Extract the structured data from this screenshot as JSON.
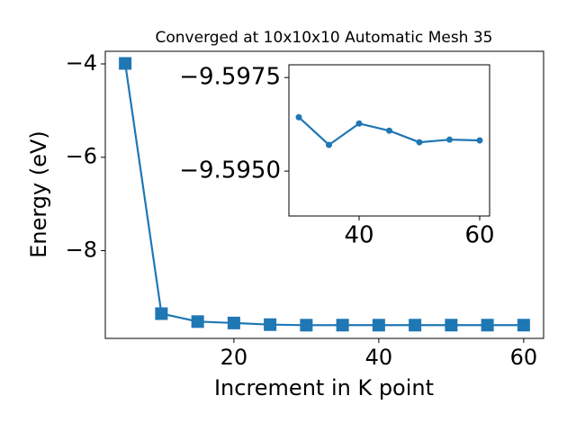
{
  "chart_data": [
    {
      "type": "line",
      "title": "Converged at 10x10x10 Automatic Mesh 35",
      "x_label": "Increment in K point",
      "y_label": "Energy (eV)",
      "x": [
        5,
        10,
        15,
        20,
        25,
        30,
        35,
        40,
        45,
        50,
        55,
        60
      ],
      "series": [
        {
          "color": "#1f77b4",
          "marker": "square",
          "values": [
            -3.99,
            -9.35,
            -9.52,
            -9.55,
            -9.585,
            -9.5964,
            -9.5957,
            -9.5963,
            -9.5961,
            -9.5958,
            -9.5958,
            -9.5958
          ]
        }
      ],
      "xlim": [
        2.25,
        62.75
      ],
      "ylim": [
        -9.88,
        -3.73
      ],
      "xticks": [
        20,
        40,
        60
      ],
      "yticks": [
        {
          "value": -8,
          "label": "−8"
        },
        {
          "value": -6,
          "label": "−6"
        },
        {
          "value": -4,
          "label": "−4"
        }
      ]
    },
    {
      "type": "line",
      "x": [
        30,
        35,
        40,
        45,
        50,
        55,
        60
      ],
      "series": [
        {
          "color": "#1f77b4",
          "marker": "circle",
          "values": [
            -9.59644,
            -9.5957,
            -9.59627,
            -9.59608,
            -9.59577,
            -9.59584,
            -9.59582
          ]
        }
      ],
      "xlim": [
        28.36,
        61.64
      ],
      "ylim": [
        -9.5938,
        -9.59784
      ],
      "xticks": [
        40,
        60
      ],
      "yticks": [
        {
          "value": -9.595,
          "label": "−9.5950"
        },
        {
          "value": -9.5975,
          "label": "−9.5975"
        }
      ]
    }
  ]
}
